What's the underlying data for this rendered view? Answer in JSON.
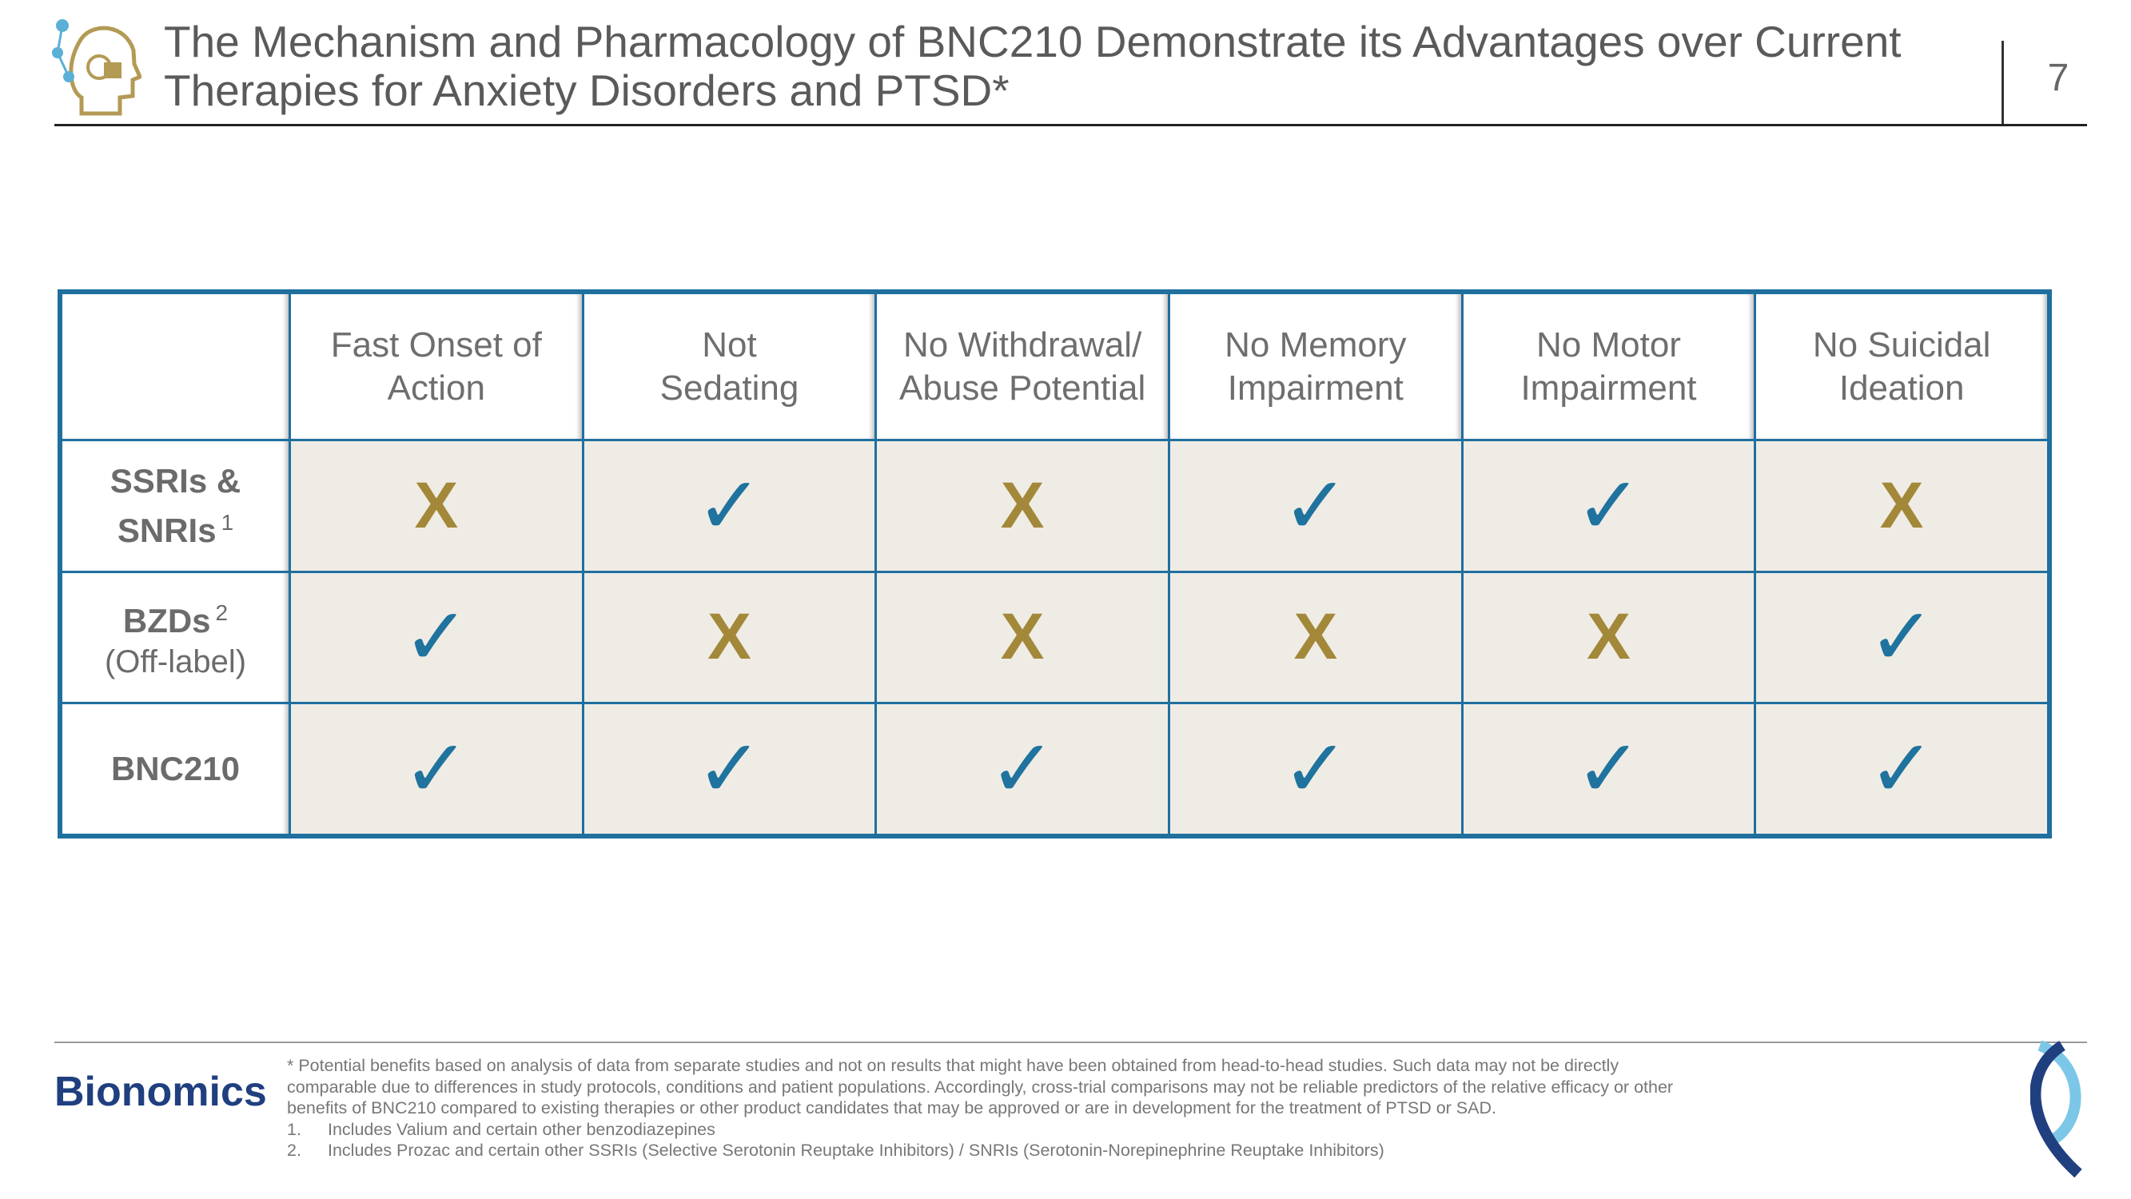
{
  "header": {
    "title": "The Mechanism and Pharmacology of BNC210 Demonstrate its Advantages over Current Therapies for Anxiety Disorders and PTSD*",
    "page_number": "7"
  },
  "table": {
    "mark_colors": {
      "X": "#a3883a",
      "✓": "#1f739e"
    },
    "columns": [
      [
        "Fast Onset of",
        "Action"
      ],
      [
        "Not",
        "Sedating"
      ],
      [
        "No Withdrawal/",
        "Abuse Potential"
      ],
      [
        "No Memory",
        "Impairment"
      ],
      [
        "No Motor",
        "Impairment"
      ],
      [
        "No Suicidal",
        "Ideation"
      ]
    ],
    "rows": [
      {
        "label": [
          "SSRIs &",
          "SNRIs"
        ],
        "sup": "1",
        "cells": [
          "X",
          "✓",
          "X",
          "✓",
          "✓",
          "X"
        ]
      },
      {
        "label": [
          "BZDs"
        ],
        "sup": "2",
        "sublabel": "(Off-label)",
        "cells": [
          "✓",
          "X",
          "X",
          "X",
          "X",
          "✓"
        ]
      },
      {
        "label": [
          "BNC210"
        ],
        "cells": [
          "✓",
          "✓",
          "✓",
          "✓",
          "✓",
          "✓"
        ]
      }
    ]
  },
  "footer": {
    "brand": "Bionomics",
    "note": "* Potential benefits based on analysis of data from separate studies and not on results that might have been obtained from head-to-head studies. Such data may not be directly comparable due to differences in study protocols, conditions and patient populations. Accordingly, cross-trial comparisons may not be reliable predictors of the relative efficacy or other benefits of BNC210 compared to existing therapies or other product candidates that may be approved or are in development for the treatment of PTSD or SAD.",
    "items": [
      {
        "num": "1.",
        "text": "Includes Valium and certain other benzodiazepines"
      },
      {
        "num": "2.",
        "text": "Includes Prozac and certain other SSRIs (Selective Serotonin Reuptake Inhibitors) / SNRIs (Serotonin-Norepinephrine Reuptake Inhibitors)"
      }
    ]
  }
}
